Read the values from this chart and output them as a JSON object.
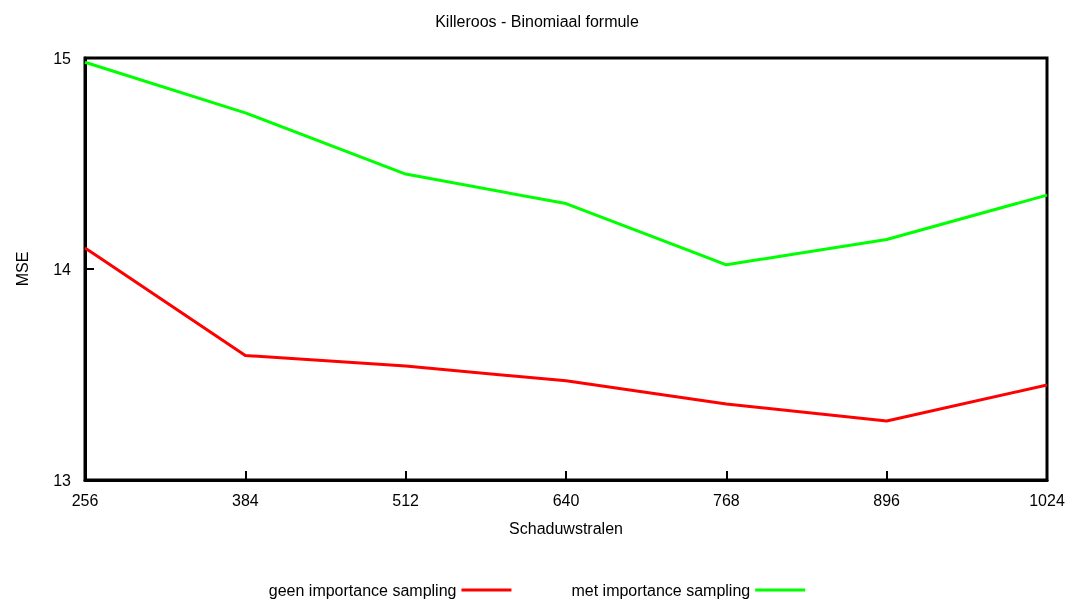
{
  "chart_data": {
    "type": "line",
    "title": "Killeroos - Binomiaal formule",
    "xlabel": "Schaduwstralen",
    "ylabel": "MSE",
    "x": [
      256,
      384,
      512,
      640,
      768,
      896,
      1024
    ],
    "series": [
      {
        "name": "geen importance sampling",
        "color": "#ff0000",
        "values": [
          14.1,
          13.59,
          13.54,
          13.47,
          13.36,
          13.28,
          13.45
        ]
      },
      {
        "name": "met importance sampling",
        "color": "#00ff00",
        "values": [
          14.98,
          14.74,
          14.45,
          14.31,
          14.02,
          14.14,
          14.35
        ]
      }
    ],
    "xlim": [
      256,
      1024
    ],
    "xticks": [
      256,
      384,
      512,
      640,
      768,
      896,
      1024
    ],
    "ylim": [
      13,
      15
    ],
    "yticks": [
      13,
      14,
      15
    ],
    "grid": false,
    "legend": "bottom",
    "marker": "none",
    "line_style": "solid"
  }
}
